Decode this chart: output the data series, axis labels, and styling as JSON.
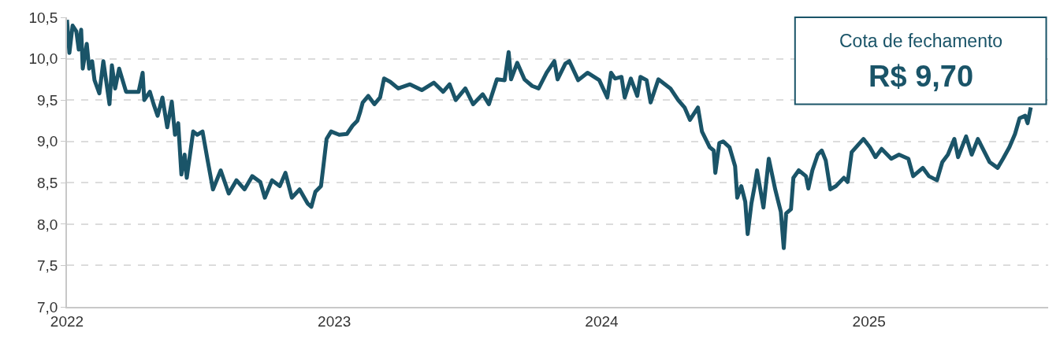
{
  "chart_data": {
    "type": "line",
    "annotations": [
      "Cota de fechamento",
      "R$ 9,70"
    ],
    "x": [
      2022.0,
      2022.009,
      2022.021,
      2022.035,
      2022.044,
      2022.053,
      2022.059,
      2022.074,
      2022.083,
      2022.094,
      2022.103,
      2022.121,
      2022.136,
      2022.159,
      2022.168,
      2022.18,
      2022.195,
      2022.221,
      2022.268,
      2022.283,
      2022.289,
      2022.31,
      2022.324,
      2022.339,
      2022.357,
      2022.375,
      2022.392,
      2022.404,
      2022.416,
      2022.428,
      2022.44,
      2022.448,
      2022.472,
      2022.487,
      2022.507,
      2022.525,
      2022.546,
      2022.575,
      2022.605,
      2022.634,
      2022.664,
      2022.693,
      2022.723,
      2022.74,
      2022.767,
      2022.796,
      2022.817,
      2022.841,
      2022.87,
      2022.9,
      2022.914,
      2022.929,
      2022.95,
      2022.959,
      2022.971,
      2022.988,
      2023.018,
      2023.047,
      2023.068,
      2023.086,
      2023.097,
      2023.106,
      2023.127,
      2023.15,
      2023.171,
      2023.186,
      2023.209,
      2023.239,
      2023.283,
      2023.327,
      2023.372,
      2023.407,
      2023.431,
      2023.454,
      2023.49,
      2023.519,
      2023.555,
      2023.578,
      2023.608,
      2023.637,
      2023.652,
      2023.661,
      2023.684,
      2023.711,
      2023.74,
      2023.764,
      2023.794,
      2023.823,
      2023.835,
      2023.864,
      2023.879,
      2023.912,
      2023.947,
      2023.991,
      2024.021,
      2024.035,
      2024.05,
      2024.074,
      2024.086,
      2024.109,
      2024.133,
      2024.145,
      2024.168,
      2024.183,
      2024.212,
      2024.257,
      2024.286,
      2024.31,
      2024.33,
      2024.36,
      2024.375,
      2024.404,
      2024.419,
      2024.425,
      2024.44,
      2024.454,
      2024.478,
      2024.499,
      2024.507,
      2024.522,
      2024.537,
      2024.546,
      2024.56,
      2024.572,
      2024.581,
      2024.605,
      2024.625,
      2024.649,
      2024.67,
      2024.681,
      2024.69,
      2024.708,
      2024.717,
      2024.737,
      2024.764,
      2024.773,
      2024.788,
      2024.808,
      2024.823,
      2024.838,
      2024.855,
      2024.876,
      2024.906,
      2024.92,
      2024.935,
      2024.965,
      2024.979,
      2025.003,
      2025.024,
      2025.047,
      2025.083,
      2025.112,
      2025.147,
      2025.165,
      2025.201,
      2025.224,
      2025.254,
      2025.274,
      2025.295,
      2025.319,
      2025.333,
      2025.363,
      2025.384,
      2025.407,
      2025.451,
      2025.481,
      2025.501,
      2025.525,
      2025.546,
      2025.563,
      2025.584,
      2025.593,
      2025.605
    ],
    "series": [
      {
        "color": "#1a5468",
        "values": [
          10.47,
          10.07,
          10.4,
          10.33,
          10.11,
          10.35,
          9.88,
          10.18,
          9.88,
          9.97,
          9.74,
          9.58,
          9.97,
          9.45,
          9.92,
          9.64,
          9.88,
          9.6,
          9.6,
          9.83,
          9.5,
          9.6,
          9.45,
          9.31,
          9.53,
          9.17,
          9.48,
          9.08,
          9.22,
          8.6,
          8.84,
          8.56,
          9.12,
          9.08,
          9.12,
          8.79,
          8.42,
          8.65,
          8.37,
          8.53,
          8.42,
          8.58,
          8.51,
          8.32,
          8.53,
          8.46,
          8.62,
          8.32,
          8.42,
          8.25,
          8.21,
          8.39,
          8.46,
          8.7,
          9.03,
          9.12,
          9.08,
          9.09,
          9.19,
          9.25,
          9.36,
          9.47,
          9.55,
          9.45,
          9.53,
          9.76,
          9.72,
          9.64,
          9.69,
          9.62,
          9.71,
          9.6,
          9.69,
          9.5,
          9.64,
          9.45,
          9.57,
          9.45,
          9.75,
          9.74,
          10.08,
          9.75,
          9.95,
          9.75,
          9.67,
          9.64,
          9.83,
          9.97,
          9.75,
          9.94,
          9.97,
          9.74,
          9.83,
          9.74,
          9.53,
          9.83,
          9.76,
          9.78,
          9.53,
          9.76,
          9.55,
          9.78,
          9.74,
          9.47,
          9.75,
          9.64,
          9.5,
          9.41,
          9.26,
          9.41,
          9.12,
          8.93,
          8.89,
          8.62,
          8.98,
          9.0,
          8.93,
          8.7,
          8.32,
          8.46,
          8.27,
          7.88,
          8.25,
          8.46,
          8.65,
          8.2,
          8.79,
          8.42,
          8.15,
          7.71,
          8.13,
          8.18,
          8.56,
          8.65,
          8.58,
          8.43,
          8.65,
          8.84,
          8.89,
          8.77,
          8.42,
          8.46,
          8.56,
          8.51,
          8.87,
          8.98,
          9.03,
          8.93,
          8.81,
          8.91,
          8.79,
          8.84,
          8.79,
          8.58,
          8.68,
          8.58,
          8.53,
          8.75,
          8.84,
          9.03,
          8.81,
          9.06,
          8.84,
          9.03,
          8.75,
          8.68,
          8.79,
          8.93,
          9.09,
          9.28,
          9.31,
          9.22,
          9.41
        ]
      }
    ],
    "xlim": [
      2022.0,
      2025.67
    ],
    "xticks": [
      2022,
      2023,
      2024,
      2025
    ],
    "ylim": [
      7.0,
      10.5
    ],
    "yticks": [
      {
        "value": 7.0,
        "label": "7,0"
      },
      {
        "value": 7.5,
        "label": "7,5"
      },
      {
        "value": 8.0,
        "label": "8,0"
      },
      {
        "value": 8.5,
        "label": "8,5"
      },
      {
        "value": 9.0,
        "label": "9,0"
      },
      {
        "value": 9.5,
        "label": "9,5"
      },
      {
        "value": 10.0,
        "label": "10,0"
      },
      {
        "value": 10.5,
        "label": "10,5"
      }
    ],
    "grid": "y",
    "line_style": "solid"
  }
}
